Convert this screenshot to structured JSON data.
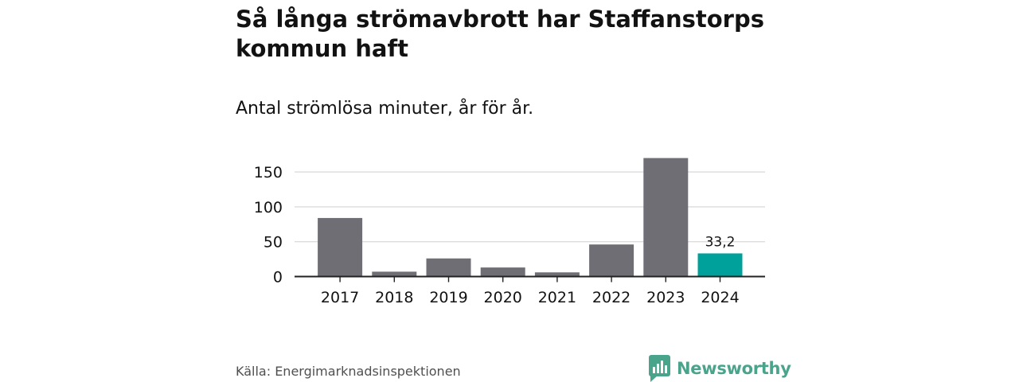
{
  "title": "Så långa strömavbrott har Staffanstorps kommun haft",
  "subtitle": "Antal strömlösa minuter, år för år.",
  "source": "Källa: Energimarknadsinspektionen",
  "brand": {
    "name": "Newsworthy",
    "color": "#4aa48c"
  },
  "colors": {
    "bar": "#6f6e74",
    "highlight": "#00a19a",
    "grid": "#dcdcdc",
    "axis": "#222222",
    "text": "#121212"
  },
  "chart_data": {
    "type": "bar",
    "title": "Så långa strömavbrott har Staffanstorps kommun haft",
    "subtitle": "Antal strömlösa minuter, år för år.",
    "xlabel": "",
    "ylabel": "",
    "categories": [
      "2017",
      "2018",
      "2019",
      "2020",
      "2021",
      "2022",
      "2023",
      "2024"
    ],
    "values": [
      84,
      7,
      26,
      13,
      6,
      46,
      170,
      33.2
    ],
    "highlight_index": 7,
    "data_labels": [
      {
        "index": 7,
        "text": "33,2"
      }
    ],
    "yticks": [
      0,
      50,
      100,
      150
    ],
    "ytick_labels": [
      "0",
      "50",
      "100",
      "150"
    ],
    "ylim": [
      0,
      170
    ],
    "grid": true,
    "legend": "none"
  }
}
